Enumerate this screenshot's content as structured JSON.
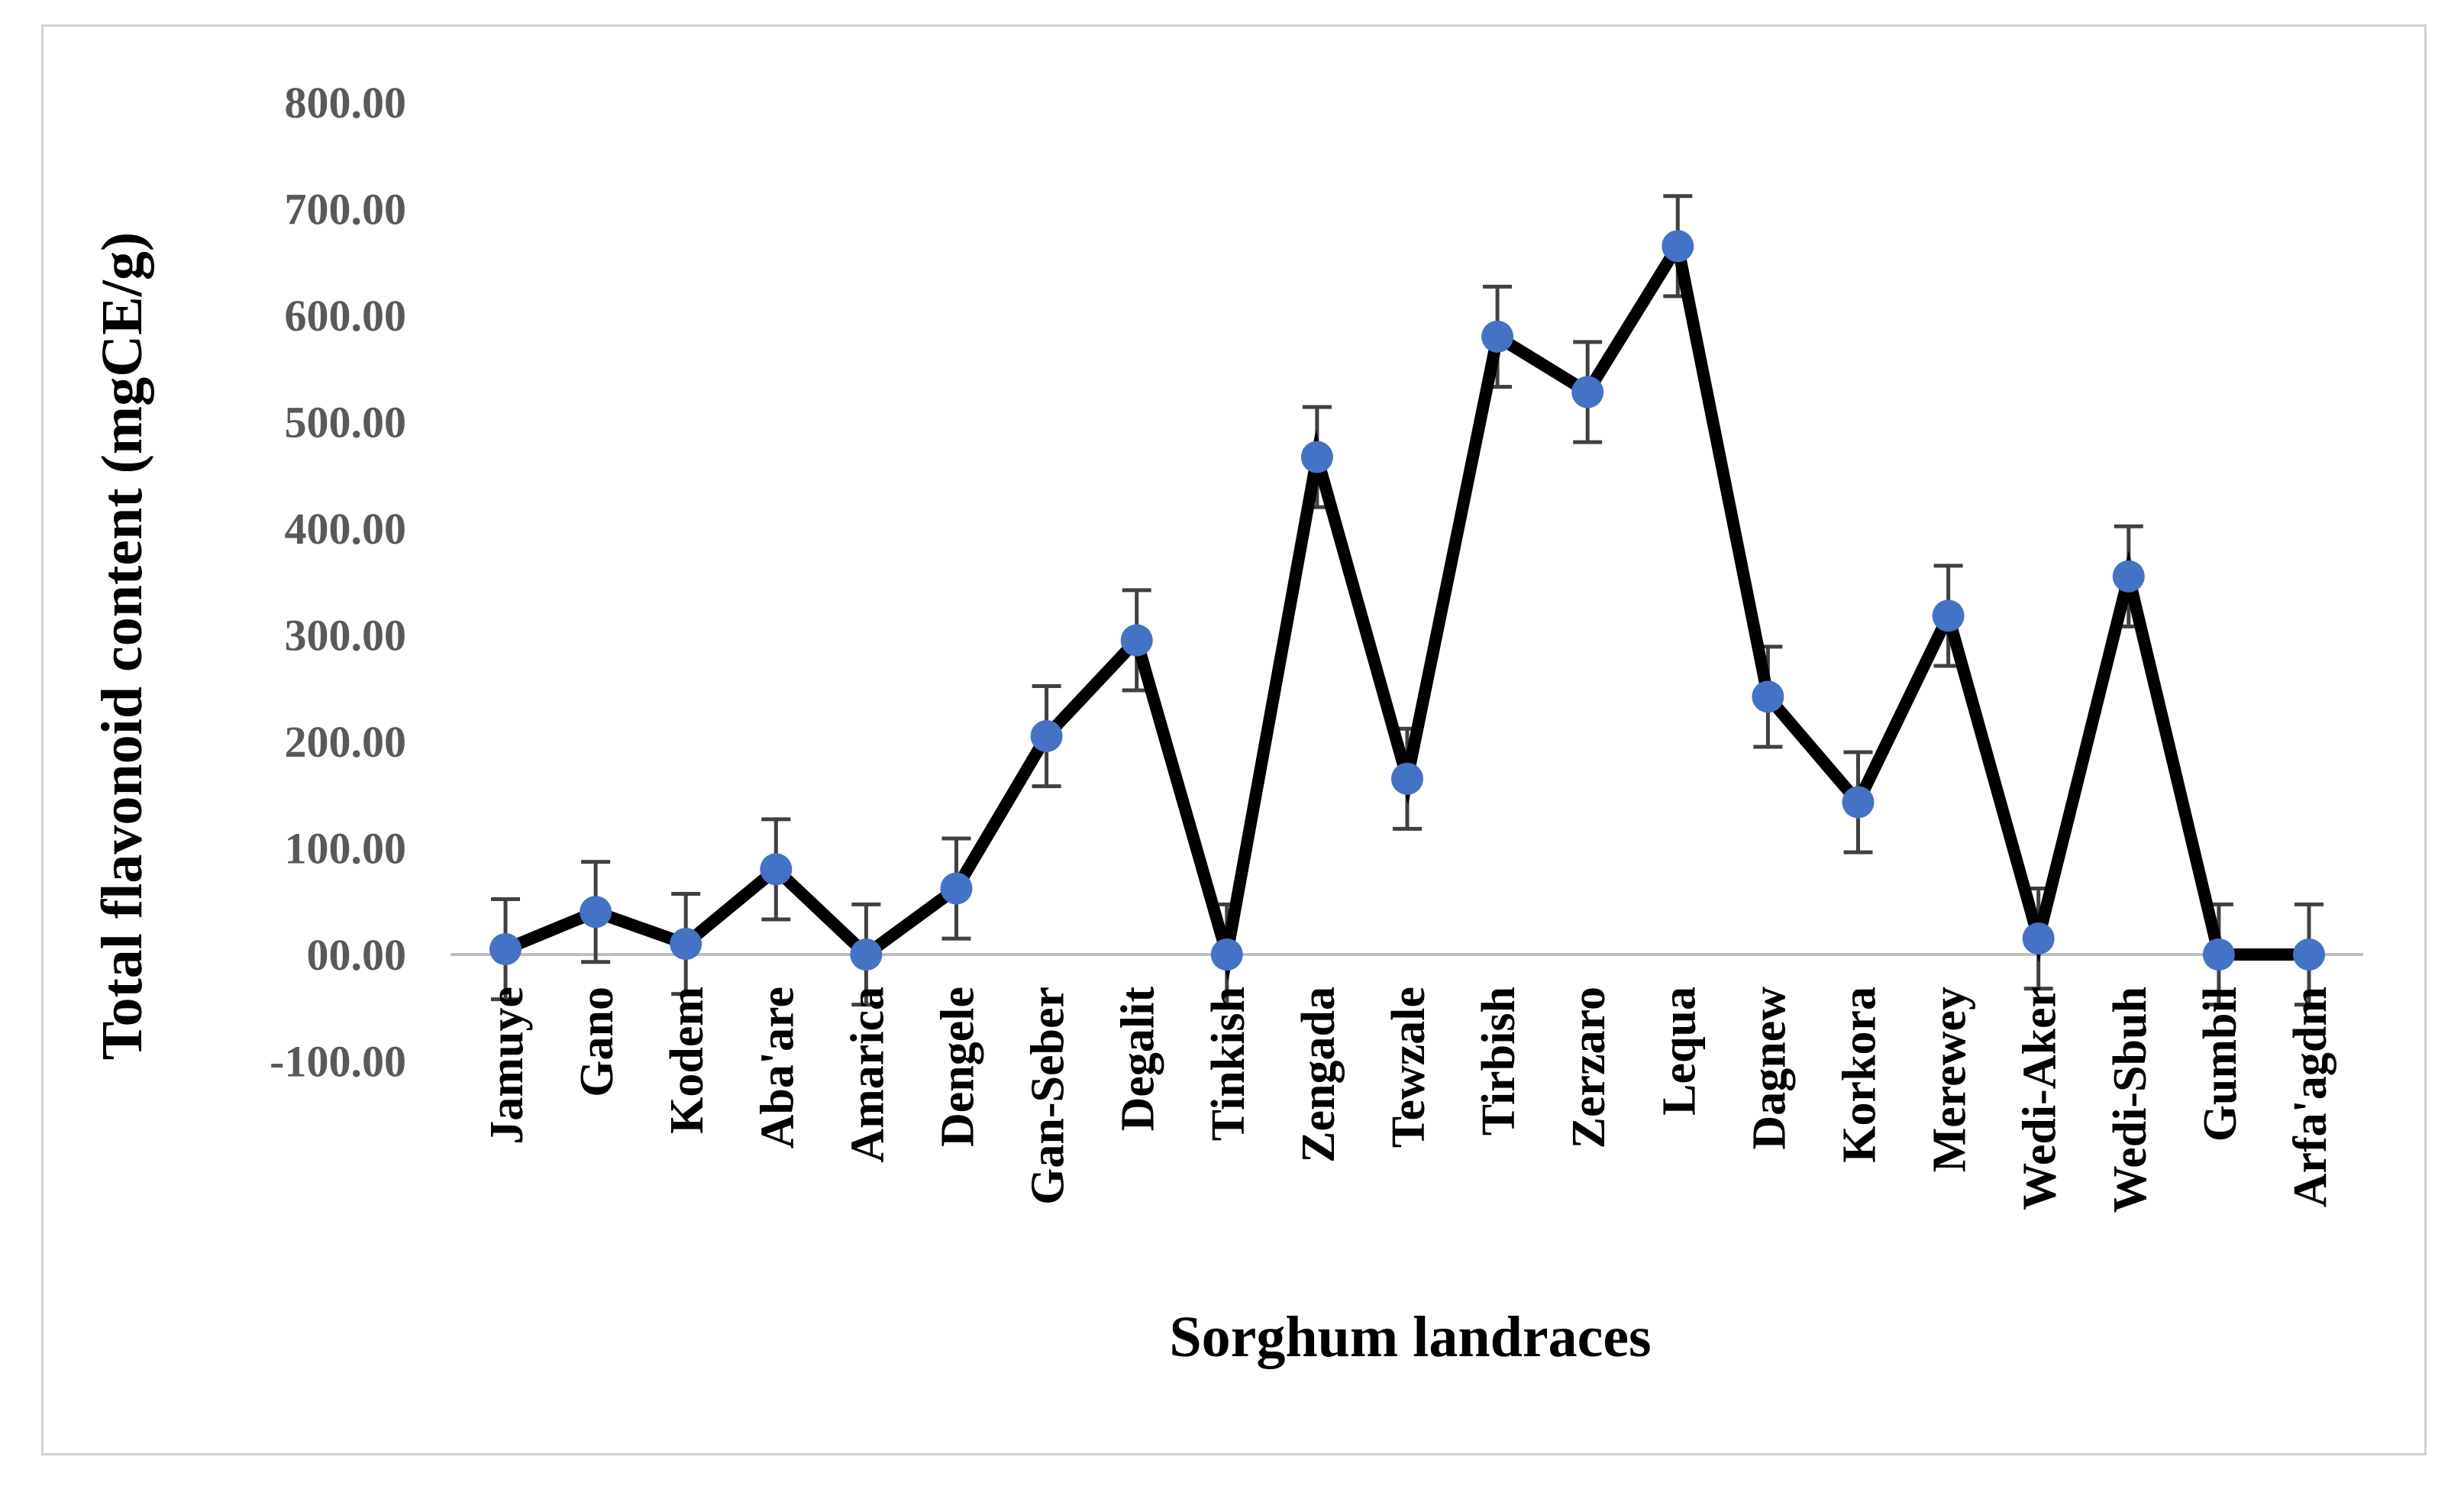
{
  "chart_data": {
    "type": "line",
    "title": "",
    "xlabel": "Sorghum landraces",
    "ylabel": "Total flavonoid content (mgCE/g)",
    "ylim": [
      -100,
      800
    ],
    "yticks": [
      -100,
      0,
      100,
      200,
      300,
      400,
      500,
      600,
      700,
      800
    ],
    "ytick_labels": [
      "-100.00",
      "00.00",
      "100.00",
      "200.00",
      "300.00",
      "400.00",
      "500.00",
      "600.00",
      "700.00",
      "800.00"
    ],
    "grid": false,
    "legend": "none",
    "categories": [
      "Jamuye",
      "Gano",
      "Kodem",
      "Aba'are",
      "Amarica",
      "Dengele",
      "Gan-Seber",
      "Degalit",
      "Tinkish",
      "Zengada",
      "Tewzale",
      "Tirbish",
      "Zerzaro",
      "Lequa",
      "Dagnew",
      "Korkora",
      "Merewey",
      "Wedi-Aker",
      "Wedi-Sbuh",
      "Gumbil",
      "Arfa'agdm"
    ],
    "series": [
      {
        "name": "Total flavonoid content",
        "values": [
          5,
          40,
          10,
          80,
          0,
          62,
          205,
          295,
          0,
          467,
          165,
          580,
          528,
          665,
          242,
          143,
          318,
          15,
          355,
          0,
          0
        ],
        "error": [
          47,
          47,
          47,
          47,
          47,
          47,
          47,
          47,
          47,
          47,
          47,
          47,
          47,
          47,
          47,
          47,
          47,
          47,
          47,
          47,
          47
        ],
        "line_color": "#000000",
        "marker_color": "#4472c4",
        "errorbar_color": "#404040"
      }
    ],
    "zero_line_color": "#bfbfbf"
  }
}
